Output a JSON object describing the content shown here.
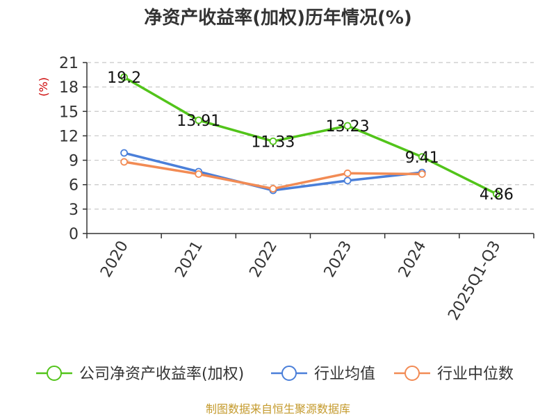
{
  "chart_data": {
    "type": "line",
    "title": "净资产收益率(加权)历年情况(%)",
    "ylabel": "(%)",
    "categories": [
      "2020",
      "2021",
      "2022",
      "2023",
      "2024",
      "2025Q1-Q3"
    ],
    "ylim": [
      0,
      21
    ],
    "yticks": [
      "0",
      "3",
      "6",
      "9",
      "12",
      "15",
      "18",
      "21"
    ],
    "grid": true,
    "legend_position": "bottom",
    "series": [
      {
        "name": "公司净资产收益率(加权)",
        "color": "#52c41a",
        "values": [
          19.2,
          13.91,
          11.33,
          13.23,
          9.41,
          4.86
        ],
        "labels": [
          "19.2",
          "13.91",
          "11.33",
          "13.23",
          "9.41",
          "4.86"
        ]
      },
      {
        "name": "行业均值",
        "color": "#4a7fd9",
        "values": [
          9.9,
          7.6,
          5.3,
          6.5,
          7.5,
          null
        ]
      },
      {
        "name": "行业中位数",
        "color": "#f28b54",
        "values": [
          8.8,
          7.3,
          5.5,
          7.4,
          7.3,
          null
        ]
      }
    ]
  },
  "footer": {
    "source": "制图数据来自恒生聚源数据库"
  }
}
